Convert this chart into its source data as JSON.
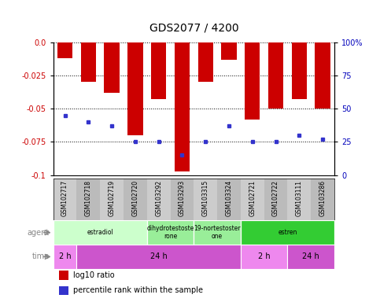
{
  "title": "GDS2077 / 4200",
  "samples": [
    "GSM102717",
    "GSM102718",
    "GSM102719",
    "GSM102720",
    "GSM103292",
    "GSM103293",
    "GSM103315",
    "GSM103324",
    "GSM102721",
    "GSM102722",
    "GSM103111",
    "GSM103286"
  ],
  "log10_ratio": [
    -0.012,
    -0.03,
    -0.038,
    -0.07,
    -0.043,
    -0.097,
    -0.03,
    -0.013,
    -0.058,
    -0.05,
    -0.043,
    -0.05
  ],
  "percentile_rank": [
    45,
    40,
    37,
    25,
    25,
    15,
    25,
    37,
    25,
    25,
    30,
    27
  ],
  "ylim_left": [
    -0.1,
    0.0
  ],
  "ylim_right": [
    0,
    100
  ],
  "yticks_left": [
    0.0,
    -0.025,
    -0.05,
    -0.075,
    -0.1
  ],
  "yticks_right": [
    100,
    75,
    50,
    25,
    0
  ],
  "bar_color": "#cc0000",
  "dot_color": "#3333cc",
  "background_color": "#ffffff",
  "plot_bg_color": "#ffffff",
  "tick_label_color_left": "#cc0000",
  "tick_label_color_right": "#0000bb",
  "agent_groups": [
    {
      "label": "estradiol",
      "start": 0,
      "end": 3,
      "color": "#ccffcc"
    },
    {
      "label": "dihydrotestoste\nrone",
      "start": 4,
      "end": 5,
      "color": "#99ee99"
    },
    {
      "label": "19-nortestoster\none",
      "start": 6,
      "end": 7,
      "color": "#99ee99"
    },
    {
      "label": "estren",
      "start": 8,
      "end": 11,
      "color": "#33cc33"
    }
  ],
  "time_groups": [
    {
      "label": "2 h",
      "start": 0,
      "end": 0,
      "color": "#ee88ee"
    },
    {
      "label": "24 h",
      "start": 1,
      "end": 7,
      "color": "#cc55cc"
    },
    {
      "label": "2 h",
      "start": 8,
      "end": 9,
      "color": "#ee88ee"
    },
    {
      "label": "24 h",
      "start": 10,
      "end": 11,
      "color": "#cc55cc"
    }
  ]
}
